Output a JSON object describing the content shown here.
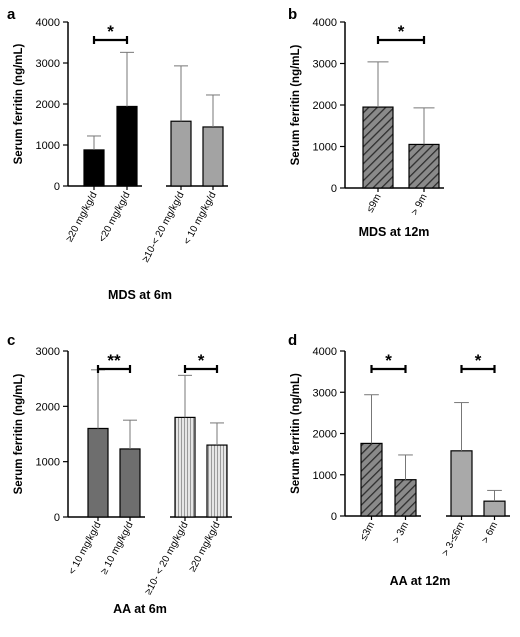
{
  "chart_data": [
    {
      "id": "a",
      "type": "bar",
      "panel_label": "a",
      "caption": "MDS at 6m",
      "ylabel": "Serum ferritin (ng/mL)",
      "ylim": [
        0,
        4000
      ],
      "yticks": [
        0,
        1000,
        2000,
        3000,
        4000
      ],
      "categories": [
        "≥20 mg/kg/d",
        "<20 mg/kg/d",
        "≥10-< 20 mg/kg/d",
        "< 10 mg/kg/d"
      ],
      "values": [
        880,
        1940,
        1580,
        1440
      ],
      "errors": [
        340,
        1320,
        1350,
        780
      ],
      "fills": [
        "black",
        "black",
        "gray",
        "gray"
      ],
      "significance": [
        {
          "from": 0,
          "to": 1,
          "label": "*"
        }
      ]
    },
    {
      "id": "b",
      "type": "bar",
      "panel_label": "b",
      "caption": "MDS at 12m",
      "ylabel": "Serum ferritin (ng/mL)",
      "ylim": [
        0,
        4000
      ],
      "yticks": [
        0,
        1000,
        2000,
        3000,
        4000
      ],
      "categories": [
        "≤9m",
        "> 9m"
      ],
      "values": [
        1950,
        1050
      ],
      "errors": [
        1090,
        880
      ],
      "fills": [
        "hatch",
        "hatch"
      ],
      "significance": [
        {
          "from": 0,
          "to": 1,
          "label": "*"
        }
      ]
    },
    {
      "id": "c",
      "type": "bar",
      "panel_label": "c",
      "caption": "AA at 6m",
      "ylabel": "Serum ferritin (ng/mL)",
      "ylim": [
        0,
        3000
      ],
      "yticks": [
        0,
        1000,
        2000,
        3000
      ],
      "categories": [
        "< 10 mg/kg/d",
        "≥ 10 mg/kg/d",
        "≥10- < 20 mg/kg/d",
        "≥20 mg/kg/d"
      ],
      "values": [
        1600,
        1230,
        1800,
        1300
      ],
      "errors": [
        1060,
        520,
        760,
        400
      ],
      "fills": [
        "darkgray",
        "darkgray",
        "vstripe",
        "vstripe"
      ],
      "significance": [
        {
          "from": 0,
          "to": 1,
          "label": "**"
        },
        {
          "from": 2,
          "to": 3,
          "label": "*"
        }
      ]
    },
    {
      "id": "d",
      "type": "bar",
      "panel_label": "d",
      "caption": "AA at 12m",
      "ylabel": "Serum ferritin (ng/mL)",
      "ylim": [
        0,
        4000
      ],
      "yticks": [
        0,
        1000,
        2000,
        3000,
        4000
      ],
      "categories": [
        "≤3m",
        "> 3m",
        "> 3-≤6m",
        "> 6m"
      ],
      "values": [
        1760,
        880,
        1580,
        360
      ],
      "errors": [
        1180,
        600,
        1170,
        260
      ],
      "fills": [
        "hatch",
        "hatch",
        "lightgray",
        "lightgray"
      ],
      "significance": [
        {
          "from": 0,
          "to": 1,
          "label": "*"
        },
        {
          "from": 2,
          "to": 3,
          "label": "*"
        }
      ]
    }
  ]
}
